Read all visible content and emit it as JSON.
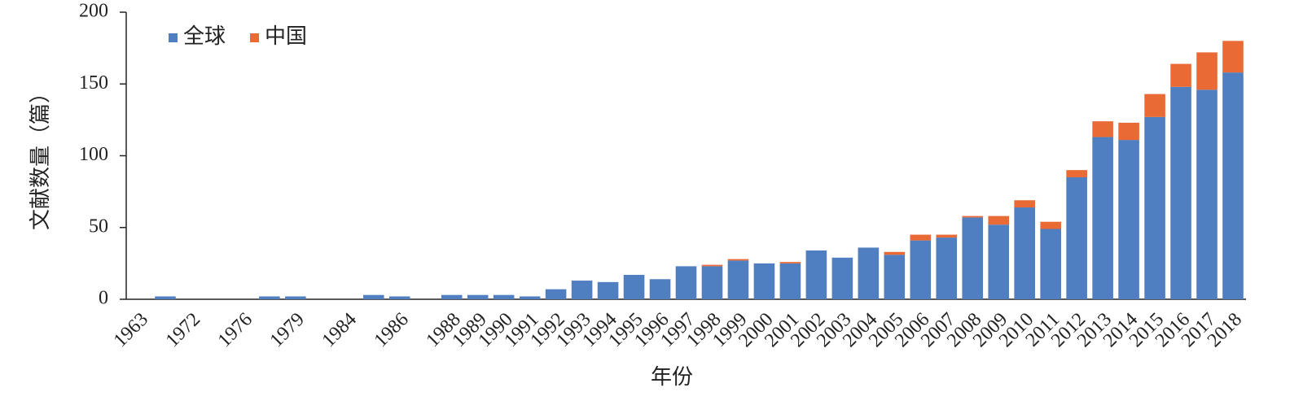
{
  "chart_data": {
    "type": "stacked_bar",
    "xlabel": "年份",
    "ylabel": "文献数量（篇）",
    "categories": [
      "1963",
      null,
      "1972",
      null,
      "1976",
      null,
      "1979",
      null,
      "1984",
      null,
      "1986",
      null,
      "1988",
      "1989",
      "1990",
      "1991",
      "1992",
      "1993",
      "1994",
      "1995",
      "1996",
      "1997",
      "1998",
      "1999",
      "2000",
      "2001",
      "2002",
      "2003",
      "2004",
      "2005",
      "2006",
      "2007",
      "2008",
      "2009",
      "2010",
      "2011",
      "2012",
      "2013",
      "2014",
      "2015",
      "2016",
      "2017",
      "2018"
    ],
    "series": [
      {
        "name": "全球",
        "color": "#4f7ec1",
        "values": [
          0,
          2,
          0,
          0,
          0,
          2,
          2,
          0,
          0,
          3,
          2,
          0,
          3,
          3,
          3,
          2,
          7,
          13,
          12,
          17,
          14,
          23,
          23,
          27,
          25,
          25,
          34,
          29,
          36,
          31,
          41,
          43,
          57,
          52,
          64,
          49,
          85,
          113,
          111,
          127,
          148,
          146,
          158
        ]
      },
      {
        "name": "中国",
        "color": "#e96a35",
        "values": [
          0,
          0,
          0,
          0,
          0,
          0,
          0,
          0,
          0,
          0,
          0,
          0,
          0,
          0,
          0,
          0,
          0,
          0,
          0,
          0,
          0,
          0,
          1,
          1,
          0,
          1,
          0,
          0,
          0,
          2,
          4,
          2,
          1,
          6,
          5,
          5,
          5,
          11,
          12,
          16,
          16,
          26,
          22
        ]
      }
    ],
    "ylim": [
      0,
      200
    ],
    "yticks": [
      0,
      50,
      100,
      150,
      200
    ],
    "legend": "top-left"
  }
}
